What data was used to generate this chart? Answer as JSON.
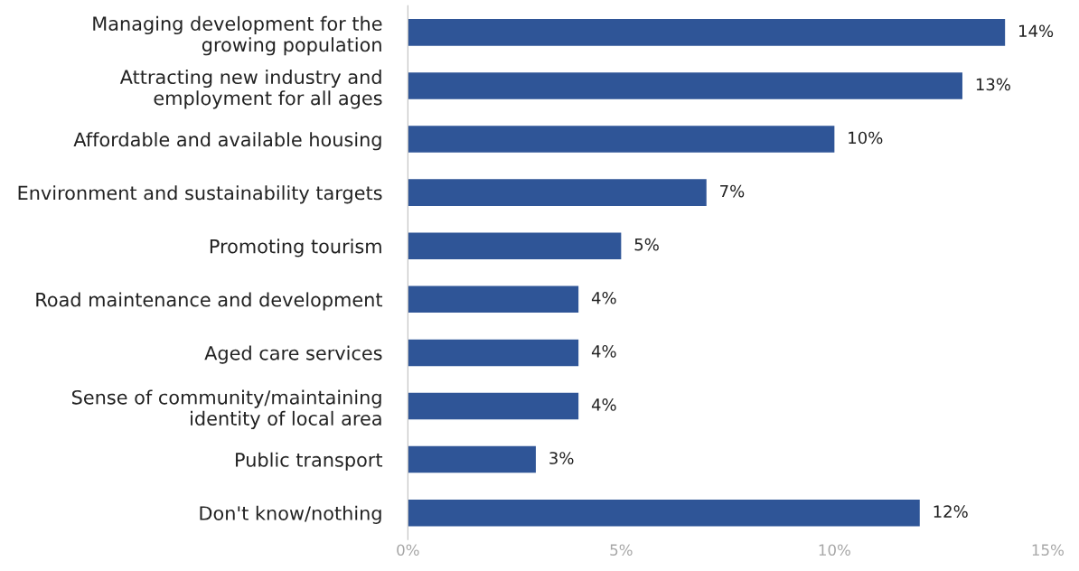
{
  "chart_data": {
    "type": "bar",
    "orientation": "horizontal",
    "categories": [
      "Managing development for the\ngrowing population",
      "Attracting new industry and\nemployment for all ages",
      "Affordable and available housing",
      "Environment and sustainability targets",
      "Promoting tourism",
      "Road maintenance and development",
      "Aged care services",
      "Sense of community/maintaining\nidentity of local area",
      "Public transport",
      "Don't know/nothing"
    ],
    "values": [
      14,
      13,
      10,
      7,
      5,
      4,
      4,
      4,
      3,
      12
    ],
    "color": "#2f5597",
    "value_labels": [
      "14%",
      "13%",
      "10%",
      "7%",
      "5%",
      "4%",
      "4%",
      "4%",
      "3%",
      "12%"
    ],
    "xlim": [
      0,
      15
    ],
    "xticks": [
      {
        "value": 0,
        "label": "0%"
      },
      {
        "value": 5,
        "label": "5%"
      },
      {
        "value": 10,
        "label": "10%"
      },
      {
        "value": 15,
        "label": "15%"
      }
    ],
    "grid": false,
    "legend": false
  }
}
